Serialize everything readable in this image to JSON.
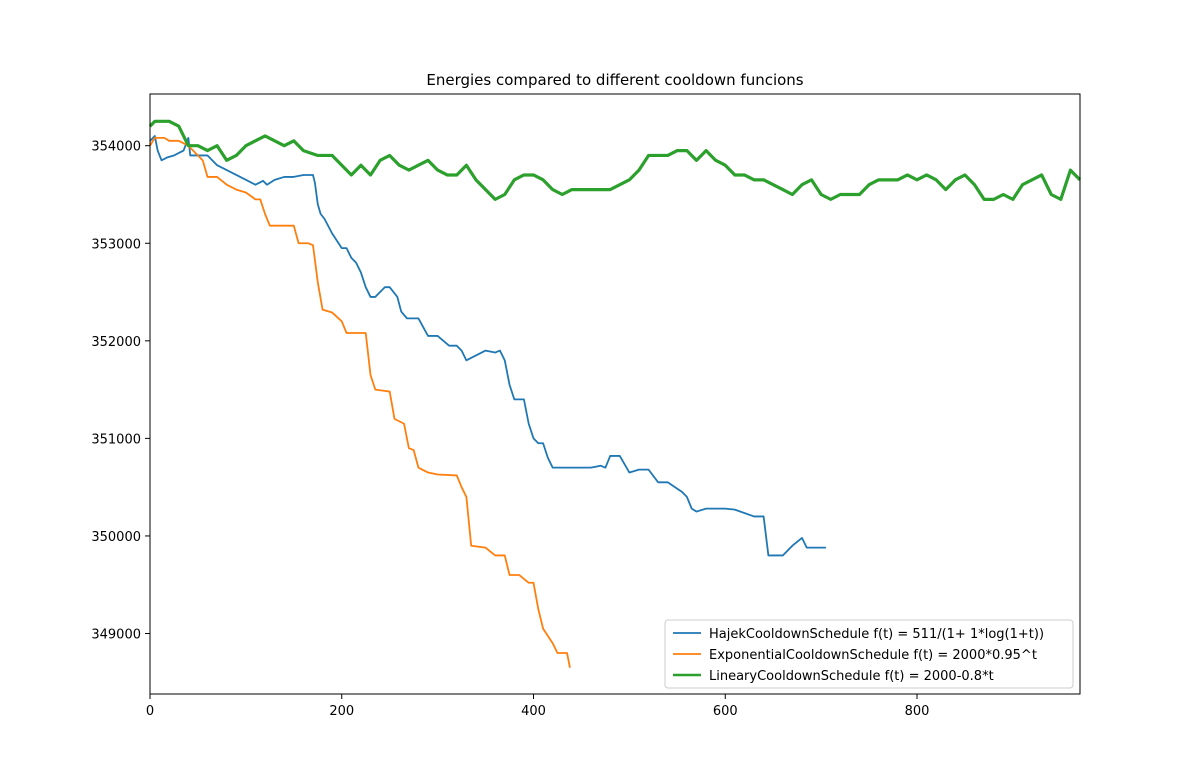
{
  "chart_data": {
    "type": "line",
    "title": "Energies compared to different cooldown funcions",
    "xlabel": "",
    "ylabel": "",
    "xlim": [
      0,
      970
    ],
    "ylim": [
      348380,
      354530
    ],
    "x_ticks": [
      0,
      200,
      400,
      600,
      800
    ],
    "y_ticks": [
      349000,
      350000,
      351000,
      352000,
      353000,
      354000
    ],
    "grid": false,
    "legend_position": "lower-right",
    "series": [
      {
        "name": "HajekCooldownSchedule f(t) = 511/(1+ 1*log(1+t))",
        "color": "#1f77b4",
        "line_width": 1.8,
        "points": [
          [
            0,
            354050
          ],
          [
            5,
            354100
          ],
          [
            8,
            353950
          ],
          [
            12,
            353850
          ],
          [
            18,
            353880
          ],
          [
            25,
            353900
          ],
          [
            35,
            353950
          ],
          [
            40,
            354080
          ],
          [
            42,
            353900
          ],
          [
            60,
            353900
          ],
          [
            70,
            353800
          ],
          [
            80,
            353750
          ],
          [
            90,
            353700
          ],
          [
            100,
            353650
          ],
          [
            110,
            353600
          ],
          [
            118,
            353640
          ],
          [
            122,
            353600
          ],
          [
            130,
            353650
          ],
          [
            140,
            353680
          ],
          [
            150,
            353680
          ],
          [
            160,
            353700
          ],
          [
            170,
            353700
          ],
          [
            172,
            353620
          ],
          [
            175,
            353400
          ],
          [
            178,
            353300
          ],
          [
            182,
            353250
          ],
          [
            190,
            353100
          ],
          [
            200,
            352950
          ],
          [
            205,
            352950
          ],
          [
            210,
            352850
          ],
          [
            215,
            352800
          ],
          [
            220,
            352700
          ],
          [
            225,
            352550
          ],
          [
            230,
            352450
          ],
          [
            235,
            352450
          ],
          [
            240,
            352500
          ],
          [
            245,
            352550
          ],
          [
            250,
            352550
          ],
          [
            258,
            352450
          ],
          [
            262,
            352300
          ],
          [
            268,
            352230
          ],
          [
            280,
            352230
          ],
          [
            290,
            352050
          ],
          [
            300,
            352050
          ],
          [
            312,
            351950
          ],
          [
            320,
            351950
          ],
          [
            325,
            351900
          ],
          [
            330,
            351800
          ],
          [
            340,
            351850
          ],
          [
            350,
            351900
          ],
          [
            360,
            351880
          ],
          [
            365,
            351900
          ],
          [
            370,
            351800
          ],
          [
            375,
            351550
          ],
          [
            380,
            351400
          ],
          [
            390,
            351400
          ],
          [
            395,
            351150
          ],
          [
            400,
            351000
          ],
          [
            405,
            350950
          ],
          [
            410,
            350950
          ],
          [
            415,
            350800
          ],
          [
            420,
            350700
          ],
          [
            440,
            350700
          ],
          [
            460,
            350700
          ],
          [
            470,
            350720
          ],
          [
            475,
            350700
          ],
          [
            480,
            350820
          ],
          [
            490,
            350820
          ],
          [
            500,
            350650
          ],
          [
            510,
            350680
          ],
          [
            520,
            350680
          ],
          [
            530,
            350550
          ],
          [
            540,
            350550
          ],
          [
            555,
            350450
          ],
          [
            560,
            350400
          ],
          [
            565,
            350280
          ],
          [
            570,
            350250
          ],
          [
            580,
            350280
          ],
          [
            600,
            350280
          ],
          [
            610,
            350270
          ],
          [
            630,
            350200
          ],
          [
            640,
            350200
          ],
          [
            645,
            349800
          ],
          [
            660,
            349800
          ],
          [
            670,
            349900
          ],
          [
            680,
            349980
          ],
          [
            685,
            349880
          ],
          [
            705,
            349880
          ]
        ]
      },
      {
        "name": "ExponentialCooldownSchedule f(t) = 2000*0.95^t",
        "color": "#ff7f0e",
        "line_width": 1.8,
        "points": [
          [
            0,
            354000
          ],
          [
            5,
            354080
          ],
          [
            15,
            354080
          ],
          [
            20,
            354050
          ],
          [
            30,
            354050
          ],
          [
            40,
            354000
          ],
          [
            50,
            353900
          ],
          [
            55,
            353850
          ],
          [
            60,
            353680
          ],
          [
            70,
            353680
          ],
          [
            80,
            353600
          ],
          [
            90,
            353550
          ],
          [
            100,
            353520
          ],
          [
            110,
            353450
          ],
          [
            115,
            353450
          ],
          [
            120,
            353300
          ],
          [
            125,
            353180
          ],
          [
            150,
            353180
          ],
          [
            155,
            353000
          ],
          [
            165,
            353000
          ],
          [
            170,
            352980
          ],
          [
            175,
            352600
          ],
          [
            180,
            352320
          ],
          [
            190,
            352290
          ],
          [
            200,
            352200
          ],
          [
            205,
            352080
          ],
          [
            225,
            352080
          ],
          [
            230,
            351650
          ],
          [
            235,
            351500
          ],
          [
            250,
            351480
          ],
          [
            255,
            351200
          ],
          [
            265,
            351150
          ],
          [
            270,
            350900
          ],
          [
            275,
            350880
          ],
          [
            280,
            350700
          ],
          [
            290,
            350650
          ],
          [
            300,
            350630
          ],
          [
            320,
            350620
          ],
          [
            325,
            350500
          ],
          [
            330,
            350400
          ],
          [
            335,
            349900
          ],
          [
            350,
            349880
          ],
          [
            360,
            349800
          ],
          [
            370,
            349800
          ],
          [
            375,
            349600
          ],
          [
            385,
            349600
          ],
          [
            395,
            349520
          ],
          [
            400,
            349520
          ],
          [
            405,
            349250
          ],
          [
            410,
            349050
          ],
          [
            420,
            348900
          ],
          [
            425,
            348800
          ],
          [
            435,
            348800
          ],
          [
            438,
            348650
          ]
        ]
      },
      {
        "name": "LinearyCooldownSchedule f(t) = 2000-0.8*t",
        "color": "#2ca02c",
        "line_width": 3.2,
        "points": [
          [
            0,
            354200
          ],
          [
            5,
            354250
          ],
          [
            20,
            354250
          ],
          [
            30,
            354200
          ],
          [
            40,
            354000
          ],
          [
            50,
            354000
          ],
          [
            60,
            353950
          ],
          [
            70,
            354000
          ],
          [
            80,
            353850
          ],
          [
            90,
            353900
          ],
          [
            100,
            354000
          ],
          [
            110,
            354050
          ],
          [
            120,
            354100
          ],
          [
            140,
            354000
          ],
          [
            150,
            354050
          ],
          [
            160,
            353950
          ],
          [
            175,
            353900
          ],
          [
            190,
            353900
          ],
          [
            200,
            353800
          ],
          [
            210,
            353700
          ],
          [
            220,
            353800
          ],
          [
            230,
            353700
          ],
          [
            240,
            353850
          ],
          [
            250,
            353900
          ],
          [
            260,
            353800
          ],
          [
            270,
            353750
          ],
          [
            280,
            353800
          ],
          [
            290,
            353850
          ],
          [
            300,
            353750
          ],
          [
            310,
            353700
          ],
          [
            320,
            353700
          ],
          [
            330,
            353800
          ],
          [
            340,
            353650
          ],
          [
            350,
            353550
          ],
          [
            360,
            353450
          ],
          [
            370,
            353500
          ],
          [
            380,
            353650
          ],
          [
            390,
            353700
          ],
          [
            400,
            353700
          ],
          [
            410,
            353650
          ],
          [
            420,
            353550
          ],
          [
            430,
            353500
          ],
          [
            440,
            353550
          ],
          [
            460,
            353550
          ],
          [
            480,
            353550
          ],
          [
            490,
            353600
          ],
          [
            500,
            353650
          ],
          [
            510,
            353750
          ],
          [
            520,
            353900
          ],
          [
            530,
            353900
          ],
          [
            540,
            353900
          ],
          [
            550,
            353950
          ],
          [
            560,
            353950
          ],
          [
            570,
            353850
          ],
          [
            580,
            353950
          ],
          [
            590,
            353850
          ],
          [
            600,
            353800
          ],
          [
            610,
            353700
          ],
          [
            620,
            353700
          ],
          [
            630,
            353650
          ],
          [
            640,
            353650
          ],
          [
            650,
            353600
          ],
          [
            660,
            353550
          ],
          [
            670,
            353500
          ],
          [
            680,
            353600
          ],
          [
            690,
            353650
          ],
          [
            700,
            353500
          ],
          [
            710,
            353450
          ],
          [
            720,
            353500
          ],
          [
            740,
            353500
          ],
          [
            750,
            353600
          ],
          [
            760,
            353650
          ],
          [
            780,
            353650
          ],
          [
            790,
            353700
          ],
          [
            800,
            353650
          ],
          [
            810,
            353700
          ],
          [
            820,
            353650
          ],
          [
            830,
            353550
          ],
          [
            840,
            353650
          ],
          [
            850,
            353700
          ],
          [
            860,
            353600
          ],
          [
            870,
            353450
          ],
          [
            880,
            353450
          ],
          [
            890,
            353500
          ],
          [
            900,
            353450
          ],
          [
            910,
            353600
          ],
          [
            920,
            353650
          ],
          [
            930,
            353700
          ],
          [
            940,
            353500
          ],
          [
            950,
            353450
          ],
          [
            960,
            353750
          ],
          [
            970,
            353650
          ]
        ]
      }
    ]
  }
}
